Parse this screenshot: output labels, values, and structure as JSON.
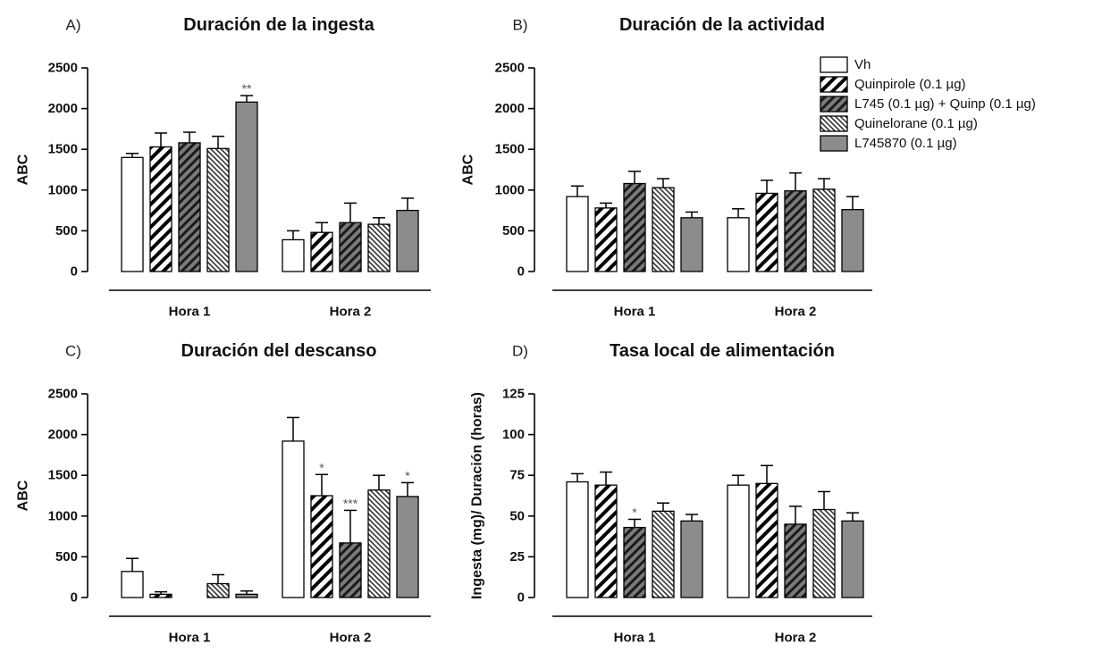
{
  "legend": [
    {
      "label": "Vh",
      "pattern": "white"
    },
    {
      "label": "Quinpirole (0.1 µg)",
      "pattern": "wide-hatch"
    },
    {
      "label": "L745 (0.1 µg) + Quinp (0.1 µg)",
      "pattern": "dark-hatch"
    },
    {
      "label": "Quinelorane (0.1 µg)",
      "pattern": "fine-hatch"
    },
    {
      "label": "L745870 (0.1 µg)",
      "pattern": "gray"
    }
  ],
  "colors": {
    "gray_fill": "#8c8c8c",
    "dark_fill": "#6f6f6f",
    "stroke": "#000000",
    "significance": "#555555"
  },
  "chart_data": [
    {
      "panel_label": "A)",
      "title": "Duración de la ingesta",
      "type": "bar",
      "ylabel": "ABC",
      "ylim": [
        0,
        2500
      ],
      "yticks": [
        0,
        500,
        1000,
        1500,
        2000,
        2500
      ],
      "categories": [
        "Hora 1",
        "Hora 2"
      ],
      "series": [
        {
          "name": "Vh",
          "values": [
            1400,
            390
          ],
          "errors": [
            50,
            110
          ],
          "sig": [
            "",
            ""
          ]
        },
        {
          "name": "Quinpirole (0.1 µg)",
          "values": [
            1530,
            480
          ],
          "errors": [
            170,
            120
          ],
          "sig": [
            "",
            ""
          ]
        },
        {
          "name": "L745 (0.1 µg) + Quinp (0.1 µg)",
          "values": [
            1580,
            600
          ],
          "errors": [
            130,
            240
          ],
          "sig": [
            "",
            ""
          ]
        },
        {
          "name": "Quinelorane (0.1 µg)",
          "values": [
            1510,
            580
          ],
          "errors": [
            150,
            80
          ],
          "sig": [
            "",
            ""
          ]
        },
        {
          "name": "L745870 (0.1 µg)",
          "values": [
            2080,
            750
          ],
          "errors": [
            80,
            150
          ],
          "sig": [
            "**",
            ""
          ]
        }
      ]
    },
    {
      "panel_label": "B)",
      "title": "Duración de la actividad",
      "type": "bar",
      "ylabel": "ABC",
      "ylim": [
        0,
        2500
      ],
      "yticks": [
        0,
        500,
        1000,
        1500,
        2000,
        2500
      ],
      "categories": [
        "Hora 1",
        "Hora 2"
      ],
      "series": [
        {
          "name": "Vh",
          "values": [
            920,
            660
          ],
          "errors": [
            130,
            110
          ],
          "sig": [
            "",
            ""
          ]
        },
        {
          "name": "Quinpirole (0.1 µg)",
          "values": [
            780,
            960
          ],
          "errors": [
            60,
            160
          ],
          "sig": [
            "",
            ""
          ]
        },
        {
          "name": "L745 (0.1 µg) + Quinp (0.1 µg)",
          "values": [
            1080,
            990
          ],
          "errors": [
            150,
            220
          ],
          "sig": [
            "",
            ""
          ]
        },
        {
          "name": "Quinelorane (0.1 µg)",
          "values": [
            1030,
            1010
          ],
          "errors": [
            110,
            130
          ],
          "sig": [
            "",
            ""
          ]
        },
        {
          "name": "L745870 (0.1 µg)",
          "values": [
            660,
            760
          ],
          "errors": [
            70,
            160
          ],
          "sig": [
            "",
            ""
          ]
        }
      ]
    },
    {
      "panel_label": "C)",
      "title": "Duración del descanso",
      "type": "bar",
      "ylabel": "ABC",
      "ylim": [
        0,
        2500
      ],
      "yticks": [
        0,
        500,
        1000,
        1500,
        2000,
        2500
      ],
      "categories": [
        "Hora 1",
        "Hora 2"
      ],
      "series": [
        {
          "name": "Vh",
          "values": [
            320,
            1920
          ],
          "errors": [
            160,
            290
          ],
          "sig": [
            "",
            ""
          ]
        },
        {
          "name": "Quinpirole (0.1 µg)",
          "values": [
            40,
            1250
          ],
          "errors": [
            30,
            260
          ],
          "sig": [
            "",
            "*"
          ]
        },
        {
          "name": "L745 (0.1 µg) + Quinp (0.1 µg)",
          "values": [
            0,
            670
          ],
          "errors": [
            0,
            400
          ],
          "sig": [
            "",
            "***"
          ]
        },
        {
          "name": "Quinelorane (0.1 µg)",
          "values": [
            170,
            1320
          ],
          "errors": [
            110,
            180
          ],
          "sig": [
            "",
            ""
          ]
        },
        {
          "name": "L745870 (0.1 µg)",
          "values": [
            40,
            1240
          ],
          "errors": [
            40,
            170
          ],
          "sig": [
            "",
            "*"
          ]
        }
      ]
    },
    {
      "panel_label": "D)",
      "title": "Tasa local de alimentación",
      "type": "bar",
      "ylabel": "Ingesta (mg)/ Duración (horas)",
      "ylim": [
        0,
        125
      ],
      "yticks": [
        0,
        25,
        50,
        75,
        100,
        125
      ],
      "categories": [
        "Hora 1",
        "Hora 2"
      ],
      "series": [
        {
          "name": "Vh",
          "values": [
            71,
            69
          ],
          "errors": [
            5,
            6
          ],
          "sig": [
            "",
            ""
          ]
        },
        {
          "name": "Quinpirole (0.1 µg)",
          "values": [
            69,
            70
          ],
          "errors": [
            8,
            11
          ],
          "sig": [
            "",
            ""
          ]
        },
        {
          "name": "L745 (0.1 µg) + Quinp (0.1 µg)",
          "values": [
            43,
            45
          ],
          "errors": [
            5,
            11
          ],
          "sig": [
            "*",
            ""
          ]
        },
        {
          "name": "Quinelorane (0.1 µg)",
          "values": [
            53,
            54
          ],
          "errors": [
            5,
            11
          ],
          "sig": [
            "",
            ""
          ]
        },
        {
          "name": "L745870 (0.1 µg)",
          "values": [
            47,
            47
          ],
          "errors": [
            4,
            5
          ],
          "sig": [
            "",
            ""
          ]
        }
      ]
    }
  ]
}
